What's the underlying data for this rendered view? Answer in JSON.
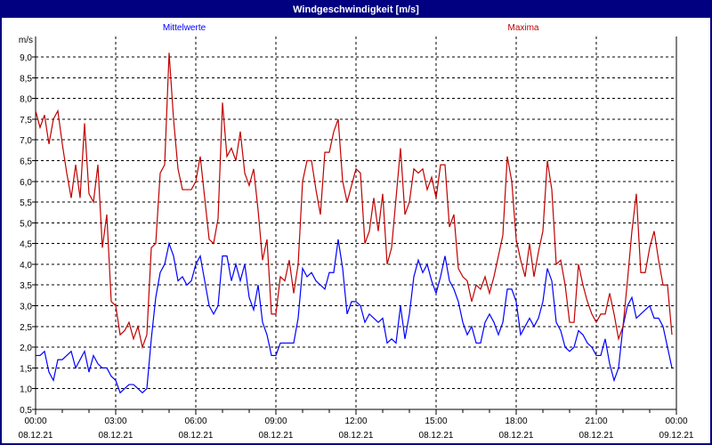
{
  "window": {
    "title": "Windgeschwindigkeit [m/s]"
  },
  "chart_data": {
    "type": "line",
    "title": "Windgeschwindigkeit [m/s]",
    "ylabel": "m/s",
    "ylim": [
      0.5,
      9.4
    ],
    "y_ticks": [
      "0,5",
      "1,0",
      "1,5",
      "2,0",
      "2,5",
      "3,0",
      "3,5",
      "4,0",
      "4,5",
      "5,0",
      "5,5",
      "6,0",
      "6,5",
      "7,0",
      "7,5",
      "8,0",
      "8,5",
      "9,0"
    ],
    "y_tick_values": [
      0.5,
      1.0,
      1.5,
      2.0,
      2.5,
      3.0,
      3.5,
      4.0,
      4.5,
      5.0,
      5.5,
      6.0,
      6.5,
      7.0,
      7.5,
      8.0,
      8.5,
      9.0
    ],
    "xlim": [
      "08.12.21 00:00",
      "09.12.21 00:00"
    ],
    "x_ticks": [
      {
        "time": "00:00",
        "date": "08.12.21"
      },
      {
        "time": "03:00",
        "date": "08.12.21"
      },
      {
        "time": "06:00",
        "date": "08.12.21"
      },
      {
        "time": "09:00",
        "date": "08.12.21"
      },
      {
        "time": "12:00",
        "date": "08.12.21"
      },
      {
        "time": "15:00",
        "date": "08.12.21"
      },
      {
        "time": "18:00",
        "date": "08.12.21"
      },
      {
        "time": "21:00",
        "date": "08.12.21"
      },
      {
        "time": "00:00",
        "date": "09.12.21"
      }
    ],
    "grid": true,
    "legend_placement": "top",
    "x": [
      "00:00",
      "00:10",
      "00:20",
      "00:30",
      "00:40",
      "00:50",
      "01:00",
      "01:10",
      "01:20",
      "01:30",
      "01:40",
      "01:50",
      "02:00",
      "02:10",
      "02:20",
      "02:30",
      "02:40",
      "02:50",
      "03:00",
      "03:10",
      "03:20",
      "03:30",
      "03:40",
      "03:50",
      "04:00",
      "04:10",
      "04:20",
      "04:30",
      "04:40",
      "04:50",
      "05:00",
      "05:10",
      "05:20",
      "05:30",
      "05:40",
      "05:50",
      "06:00",
      "06:10",
      "06:20",
      "06:30",
      "06:40",
      "06:50",
      "07:00",
      "07:10",
      "07:20",
      "07:30",
      "07:40",
      "07:50",
      "08:00",
      "08:10",
      "08:20",
      "08:30",
      "08:40",
      "08:50",
      "09:00",
      "09:10",
      "09:20",
      "09:30",
      "09:40",
      "09:50",
      "10:00",
      "10:10",
      "10:20",
      "10:30",
      "10:40",
      "10:50",
      "11:00",
      "11:10",
      "11:20",
      "11:30",
      "11:40",
      "11:50",
      "12:00",
      "12:10",
      "12:20",
      "12:30",
      "12:40",
      "12:50",
      "13:00",
      "13:10",
      "13:20",
      "13:30",
      "13:40",
      "13:50",
      "14:00",
      "14:10",
      "14:20",
      "14:30",
      "14:40",
      "14:50",
      "15:00",
      "15:10",
      "15:20",
      "15:30",
      "15:40",
      "15:50",
      "16:00",
      "16:10",
      "16:20",
      "16:30",
      "16:40",
      "16:50",
      "17:00",
      "17:10",
      "17:20",
      "17:30",
      "17:40",
      "17:50",
      "18:00",
      "18:10",
      "18:20",
      "18:30",
      "18:40",
      "18:50",
      "19:00",
      "19:10",
      "19:20",
      "19:30",
      "19:40",
      "19:50",
      "20:00",
      "20:10",
      "20:20",
      "20:30",
      "20:40",
      "20:50",
      "21:00",
      "21:10",
      "21:20",
      "21:30",
      "21:40",
      "21:50",
      "22:00",
      "22:10",
      "22:20",
      "22:30",
      "22:40",
      "22:50",
      "23:00",
      "23:10",
      "23:20",
      "23:30",
      "23:40",
      "23:50"
    ],
    "series": [
      {
        "name": "Mittelwerte",
        "color": "#0000ff",
        "values": [
          1.8,
          1.8,
          1.9,
          1.4,
          1.2,
          1.7,
          1.7,
          1.8,
          1.9,
          1.5,
          1.7,
          1.9,
          1.4,
          1.8,
          1.6,
          1.5,
          1.5,
          1.3,
          1.2,
          0.9,
          1.0,
          1.1,
          1.1,
          1.0,
          0.9,
          1.0,
          2.2,
          3.2,
          3.8,
          4.0,
          4.5,
          4.2,
          3.6,
          3.7,
          3.5,
          3.6,
          4.0,
          4.2,
          3.6,
          3.0,
          2.8,
          3.0,
          4.2,
          4.2,
          3.6,
          4.0,
          3.6,
          4.0,
          3.2,
          2.9,
          3.5,
          2.6,
          2.3,
          1.8,
          1.8,
          2.1,
          2.1,
          2.1,
          2.1,
          2.7,
          3.9,
          3.7,
          3.8,
          3.6,
          3.5,
          3.4,
          3.8,
          3.8,
          4.6,
          3.9,
          2.8,
          3.1,
          3.1,
          3.0,
          2.6,
          2.8,
          2.7,
          2.6,
          2.7,
          2.1,
          2.2,
          2.1,
          3.0,
          2.2,
          2.8,
          3.7,
          4.1,
          3.8,
          4.0,
          3.6,
          3.3,
          3.7,
          4.2,
          3.6,
          3.4,
          3.1,
          2.6,
          2.3,
          2.5,
          2.1,
          2.1,
          2.6,
          2.8,
          2.6,
          2.3,
          2.6,
          3.4,
          3.4,
          3.1,
          2.3,
          2.5,
          2.7,
          2.5,
          2.7,
          3.1,
          3.9,
          3.6,
          2.6,
          2.4,
          2.0,
          1.9,
          2.0,
          2.4,
          2.3,
          2.1,
          2.0,
          1.8,
          1.8,
          2.2,
          1.6,
          1.2,
          1.5,
          2.5,
          3.0,
          3.2,
          2.7,
          2.8,
          2.9,
          3.0,
          2.7,
          2.7,
          2.5,
          2.0,
          1.5
        ]
      },
      {
        "name": "Maxima",
        "color": "#c00000",
        "values": [
          7.7,
          7.3,
          7.6,
          6.9,
          7.5,
          7.7,
          6.9,
          6.2,
          5.6,
          6.4,
          5.6,
          7.4,
          5.7,
          5.5,
          6.4,
          4.4,
          5.2,
          3.1,
          3.0,
          2.3,
          2.4,
          2.6,
          2.2,
          2.5,
          2.0,
          2.3,
          4.4,
          4.5,
          6.2,
          6.4,
          9.1,
          7.5,
          6.3,
          5.8,
          5.8,
          5.8,
          6.0,
          6.6,
          5.6,
          4.6,
          4.5,
          5.1,
          7.9,
          6.6,
          6.8,
          6.5,
          7.2,
          6.2,
          5.9,
          6.3,
          5.3,
          4.1,
          4.6,
          2.8,
          2.8,
          3.7,
          3.6,
          4.1,
          3.3,
          4.0,
          6.0,
          6.5,
          6.5,
          5.8,
          5.2,
          6.7,
          6.7,
          7.2,
          7.5,
          6.0,
          5.5,
          5.9,
          6.3,
          6.2,
          4.5,
          4.8,
          5.6,
          4.8,
          5.7,
          4.0,
          4.4,
          5.6,
          6.8,
          5.2,
          5.5,
          6.3,
          6.2,
          6.3,
          5.8,
          6.1,
          5.6,
          6.4,
          6.4,
          4.9,
          5.2,
          3.9,
          3.7,
          3.6,
          3.1,
          3.5,
          3.4,
          3.7,
          3.3,
          3.7,
          4.2,
          4.7,
          6.6,
          6.0,
          4.6,
          4.1,
          3.7,
          4.5,
          3.7,
          4.3,
          4.8,
          6.5,
          5.8,
          4.0,
          4.1,
          3.5,
          2.6,
          2.6,
          4.0,
          3.5,
          3.1,
          2.8,
          2.6,
          2.8,
          2.8,
          3.3,
          2.8,
          2.2,
          2.5,
          3.6,
          4.8,
          5.7,
          3.8,
          3.8,
          4.4,
          4.8,
          4.1,
          3.5,
          3.5,
          2.3
        ]
      }
    ]
  }
}
